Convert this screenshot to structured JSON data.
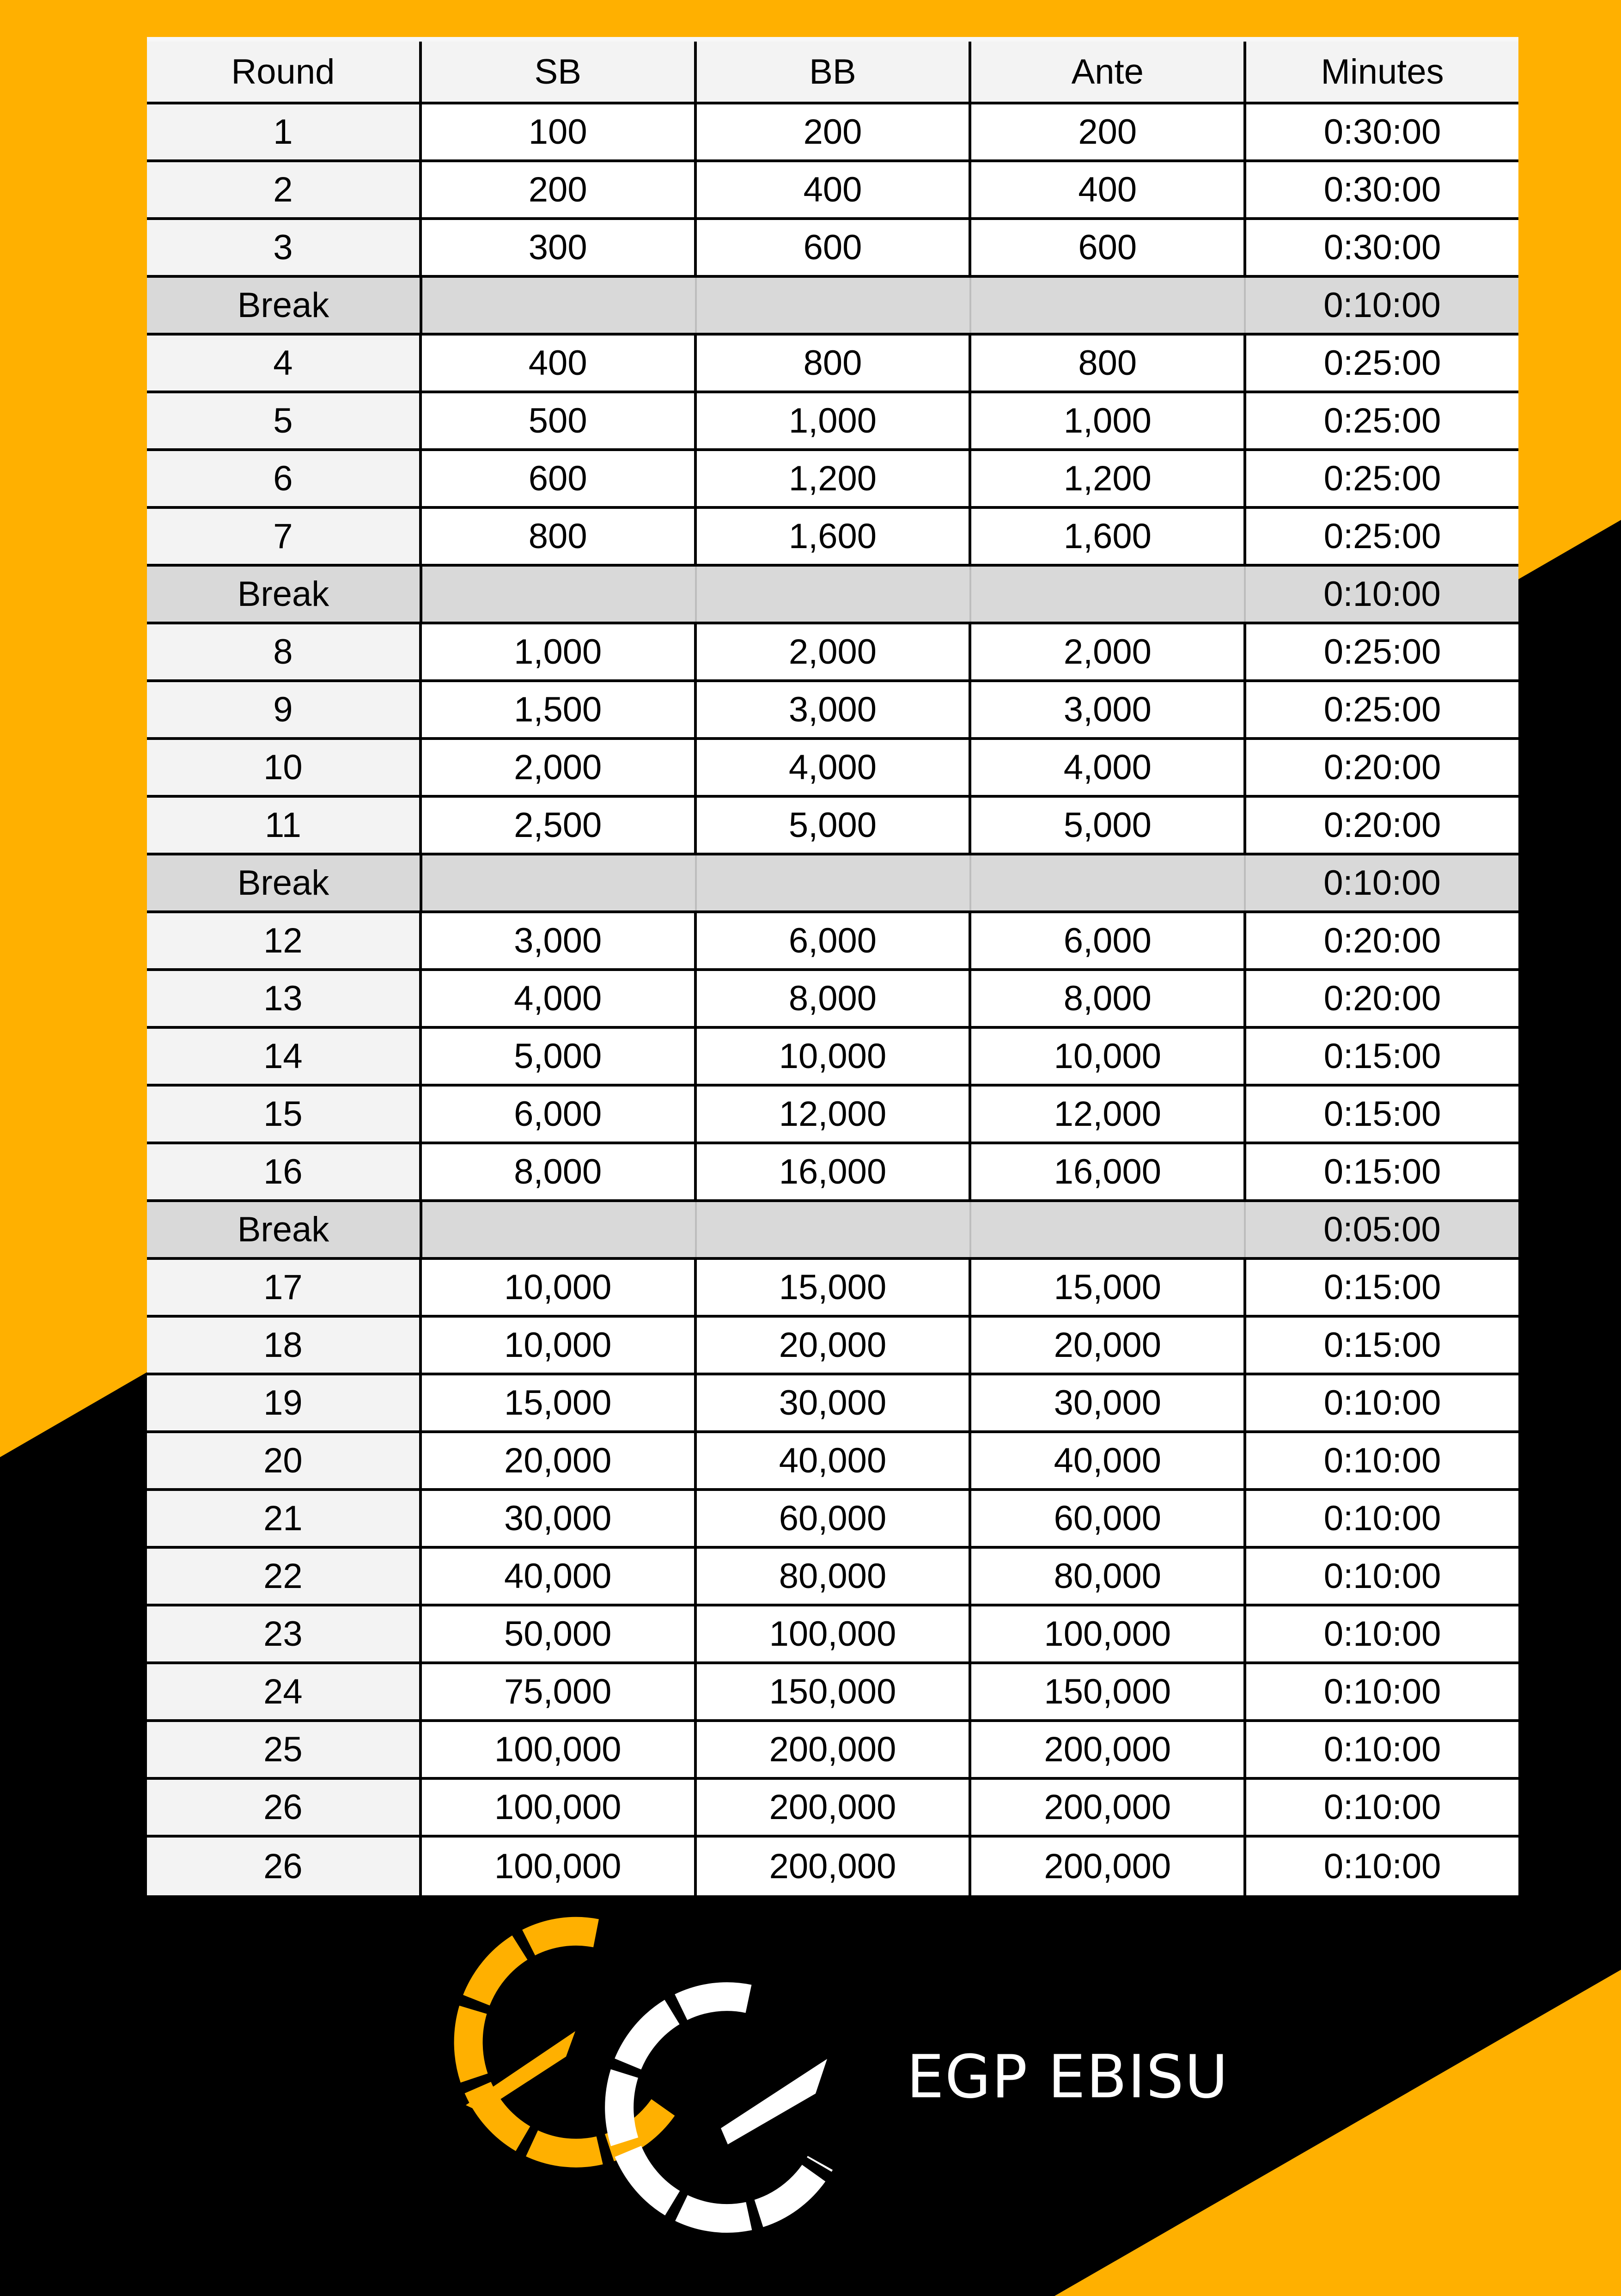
{
  "colors": {
    "orange": "#FFB000",
    "black": "#000000",
    "break_row": "#d9d9d9",
    "first_col": "#f3f3f3"
  },
  "table": {
    "headers": [
      "Round",
      "SB",
      "BB",
      "Ante",
      "Minutes"
    ],
    "rows": [
      [
        "1",
        "100",
        "200",
        "200",
        "0:30:00"
      ],
      [
        "2",
        "200",
        "400",
        "400",
        "0:30:00"
      ],
      [
        "3",
        "300",
        "600",
        "600",
        "0:30:00"
      ],
      [
        "Break",
        "",
        "",
        "",
        "0:10:00"
      ],
      [
        "4",
        "400",
        "800",
        "800",
        "0:25:00"
      ],
      [
        "5",
        "500",
        "1,000",
        "1,000",
        "0:25:00"
      ],
      [
        "6",
        "600",
        "1,200",
        "1,200",
        "0:25:00"
      ],
      [
        "7",
        "800",
        "1,600",
        "1,600",
        "0:25:00"
      ],
      [
        "Break",
        "",
        "",
        "",
        "0:10:00"
      ],
      [
        "8",
        "1,000",
        "2,000",
        "2,000",
        "0:25:00"
      ],
      [
        "9",
        "1,500",
        "3,000",
        "3,000",
        "0:25:00"
      ],
      [
        "10",
        "2,000",
        "4,000",
        "4,000",
        "0:20:00"
      ],
      [
        "11",
        "2,500",
        "5,000",
        "5,000",
        "0:20:00"
      ],
      [
        "Break",
        "",
        "",
        "",
        "0:10:00"
      ],
      [
        "12",
        "3,000",
        "6,000",
        "6,000",
        "0:20:00"
      ],
      [
        "13",
        "4,000",
        "8,000",
        "8,000",
        "0:20:00"
      ],
      [
        "14",
        "5,000",
        "10,000",
        "10,000",
        "0:15:00"
      ],
      [
        "15",
        "6,000",
        "12,000",
        "12,000",
        "0:15:00"
      ],
      [
        "16",
        "8,000",
        "16,000",
        "16,000",
        "0:15:00"
      ],
      [
        "Break",
        "",
        "",
        "",
        "0:05:00"
      ],
      [
        "17",
        "10,000",
        "15,000",
        "15,000",
        "0:15:00"
      ],
      [
        "18",
        "10,000",
        "20,000",
        "20,000",
        "0:15:00"
      ],
      [
        "19",
        "15,000",
        "30,000",
        "30,000",
        "0:10:00"
      ],
      [
        "20",
        "20,000",
        "40,000",
        "40,000",
        "0:10:00"
      ],
      [
        "21",
        "30,000",
        "60,000",
        "60,000",
        "0:10:00"
      ],
      [
        "22",
        "40,000",
        "80,000",
        "80,000",
        "0:10:00"
      ],
      [
        "23",
        "50,000",
        "100,000",
        "100,000",
        "0:10:00"
      ],
      [
        "24",
        "75,000",
        "150,000",
        "150,000",
        "0:10:00"
      ],
      [
        "25",
        "100,000",
        "200,000",
        "200,000",
        "0:10:00"
      ],
      [
        "26",
        "100,000",
        "200,000",
        "200,000",
        "0:10:00"
      ],
      [
        "26",
        "100,000",
        "200,000",
        "200,000",
        "0:10:00"
      ]
    ]
  },
  "brand": {
    "name": "EGP EBISU",
    "logo_text": "EG"
  }
}
